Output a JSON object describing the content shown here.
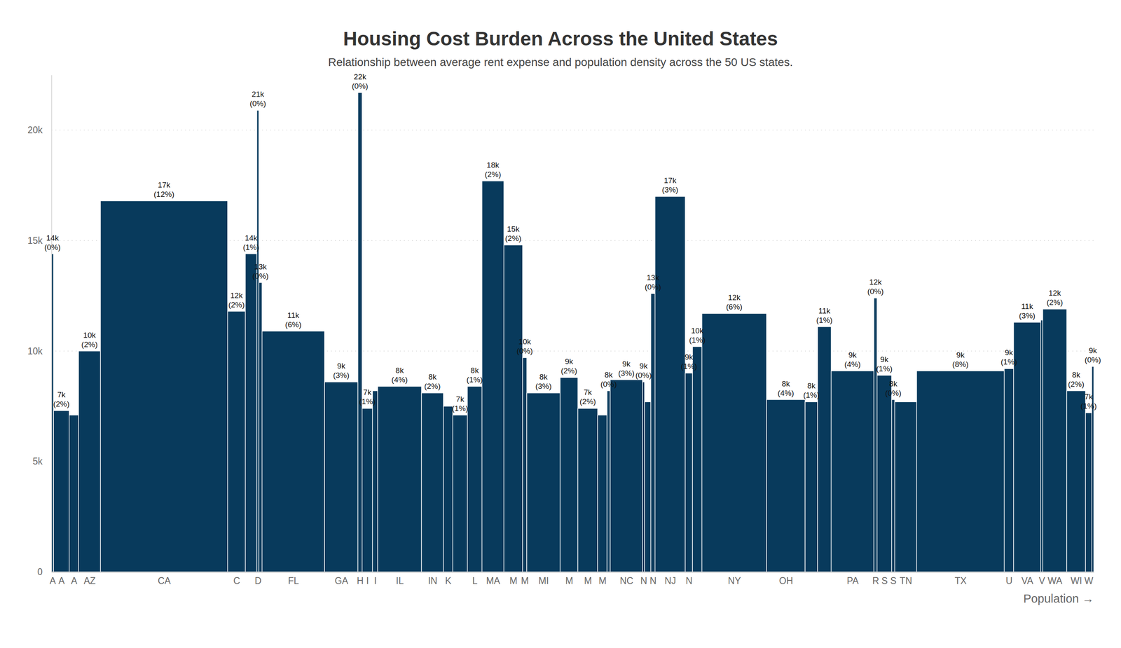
{
  "chart_data": {
    "type": "bar",
    "title": "Housing Cost Burden Across the United States",
    "subtitle": "Relationship between average rent expense and population density across the 50 US states.",
    "x_label": "Population →",
    "categories": [
      "A",
      "A",
      "A",
      "AZ",
      "CA",
      "C",
      null,
      "D",
      null,
      "FL",
      "GA",
      "H",
      "I",
      "I",
      "IL",
      "IN",
      "K",
      null,
      "L",
      "MA",
      "M",
      "M",
      "MI",
      "M",
      "M",
      "M",
      null,
      "NC",
      "N",
      null,
      "N",
      "NJ",
      "N",
      null,
      "NY",
      "OH",
      null,
      null,
      "PA",
      "R",
      "S",
      "S",
      "TN",
      "TX",
      "U",
      "VA",
      "V",
      "WA",
      "WI",
      "W",
      null
    ],
    "values": [
      14400,
      7300,
      7100,
      10000,
      16800,
      11800,
      14400,
      20900,
      13100,
      10900,
      8600,
      21700,
      7400,
      8200,
      8400,
      8100,
      7500,
      7100,
      8400,
      17700,
      14800,
      9700,
      8100,
      8800,
      7400,
      7100,
      8200,
      8700,
      8600,
      7700,
      12600,
      17000,
      9000,
      10200,
      11700,
      7800,
      7700,
      11100,
      9100,
      12400,
      8900,
      7800,
      7700,
      9100,
      9200,
      11300,
      11400,
      11900,
      8200,
      7200,
      9300
    ],
    "widths": [
      0.2,
      1.5,
      0.9,
      2.1,
      12.2,
      1.7,
      1.1,
      0.2,
      0.3,
      6.0,
      3.2,
      0.4,
      1.0,
      0.5,
      4.2,
      2.1,
      0.9,
      1.4,
      1.4,
      2.1,
      1.8,
      0.4,
      3.2,
      1.7,
      1.9,
      0.9,
      0.3,
      3.1,
      0.2,
      0.6,
      0.4,
      2.9,
      0.7,
      0.9,
      6.2,
      3.7,
      1.2,
      1.3,
      4.1,
      0.3,
      1.4,
      0.3,
      2.1,
      8.4,
      0.9,
      2.6,
      0.2,
      2.3,
      1.8,
      0.6,
      0.2
    ],
    "value_labels": [
      "14k\n(0%)",
      "7k\n(2%)",
      null,
      "10k\n(2%)",
      "17k\n(12%)",
      "12k\n(2%)",
      "14k\n(1%)",
      "21k\n(0%)",
      "13k\n(0%)",
      "11k\n(6%)",
      "9k\n(3%)",
      "22k\n(0%)",
      "7k\n(1%)",
      null,
      "8k\n(4%)",
      "8k\n(2%)",
      null,
      "7k\n(1%)",
      "8k\n(1%)",
      "18k\n(2%)",
      "15k\n(2%)",
      "10k\n(0%)",
      "8k\n(3%)",
      "9k\n(2%)",
      "7k\n(2%)",
      null,
      "8k\n(0%)",
      "9k\n(3%)",
      "9k\n(0%)",
      null,
      "13k\n(0%)",
      "17k\n(3%)",
      "9k\n(1%)",
      "10k\n(1%)",
      "12k\n(6%)",
      "8k\n(4%)",
      "8k\n(1%)",
      "11k\n(1%)",
      "9k\n(4%)",
      "12k\n(0%)",
      "9k\n(1%)",
      "8k\n(0%)",
      null,
      "9k\n(8%)",
      "9k\n(1%)",
      "11k\n(3%)",
      null,
      "12k\n(2%)",
      "8k\n(2%)",
      "7k\n(1%)",
      "9k\n(0%)"
    ],
    "color": "#083a5c",
    "xlim": [
      0,
      100
    ],
    "ylim": [
      0,
      22500
    ],
    "yticks": [
      0,
      {
        "value": 5000,
        "label": "5k"
      },
      {
        "value": 10000,
        "label": "10k"
      },
      {
        "value": 15000,
        "label": "15k"
      },
      {
        "value": 20000,
        "label": "20k"
      }
    ],
    "grid": true,
    "data_labels": true
  }
}
